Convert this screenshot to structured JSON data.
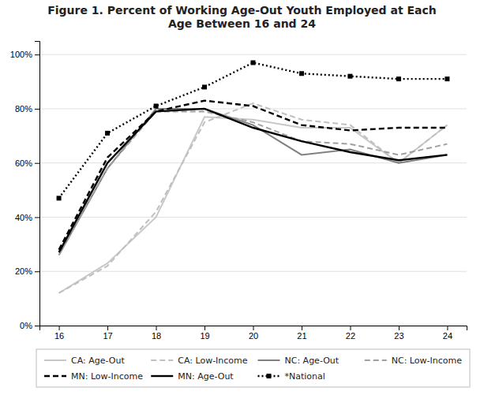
{
  "chart_data": {
    "type": "line",
    "title": "Figure 1. Percent of Working Age-Out Youth Employed at Each\nAge Between 16 and 24",
    "x": [
      16,
      17,
      18,
      19,
      20,
      21,
      22,
      23,
      24
    ],
    "series": [
      {
        "name": "CA: Age-Out",
        "color": "#c8c8c8",
        "line_style": "solid",
        "values": [
          0.12,
          0.23,
          0.4,
          0.77,
          0.76,
          0.73,
          0.73,
          0.6,
          0.74
        ]
      },
      {
        "name": "CA: Low-Income",
        "color": "#c0c0c0",
        "line_style": "dashed",
        "values": [
          0.12,
          0.22,
          0.42,
          0.75,
          0.82,
          0.76,
          0.74,
          0.6,
          0.74
        ]
      },
      {
        "name": "NC: Age-Out",
        "color": "#808080",
        "line_style": "solid",
        "values": [
          0.26,
          0.58,
          0.8,
          0.8,
          0.74,
          0.63,
          0.65,
          0.6,
          0.63
        ]
      },
      {
        "name": "NC: Low-Income",
        "color": "#a0a0a0",
        "line_style": "dashed",
        "values": [
          0.26,
          0.58,
          0.79,
          0.79,
          0.75,
          0.68,
          0.67,
          0.63,
          0.67
        ]
      },
      {
        "name": "MN: Low-Income",
        "color": "#000000",
        "line_style": "dashed",
        "values": [
          0.28,
          0.62,
          0.79,
          0.83,
          0.81,
          0.74,
          0.72,
          0.73,
          0.73
        ]
      },
      {
        "name": "MN: Age-Out",
        "color": "#000000",
        "line_style": "solid",
        "values": [
          0.27,
          0.6,
          0.79,
          0.8,
          0.73,
          0.68,
          0.64,
          0.61,
          0.63
        ]
      },
      {
        "name": "*National",
        "color": "#000000",
        "line_style": "dotted",
        "marker": "square",
        "values": [
          0.47,
          0.71,
          0.81,
          0.88,
          0.97,
          0.93,
          0.92,
          0.91,
          0.91
        ]
      }
    ],
    "xlim": [
      15.6,
      24.4
    ],
    "xticks": [
      16,
      17,
      18,
      19,
      20,
      21,
      22,
      23,
      24
    ],
    "ylim": [
      0,
      1.05
    ],
    "yticks": [
      {
        "value": 0.0,
        "label": "0%"
      },
      {
        "value": 0.2,
        "label": "20%"
      },
      {
        "value": 0.4,
        "label": "40%"
      },
      {
        "value": 0.6,
        "label": "60%"
      },
      {
        "value": 0.8,
        "label": "80%"
      },
      {
        "value": 1.0,
        "label": "100%"
      }
    ],
    "grid": true,
    "legend": "bottom"
  }
}
